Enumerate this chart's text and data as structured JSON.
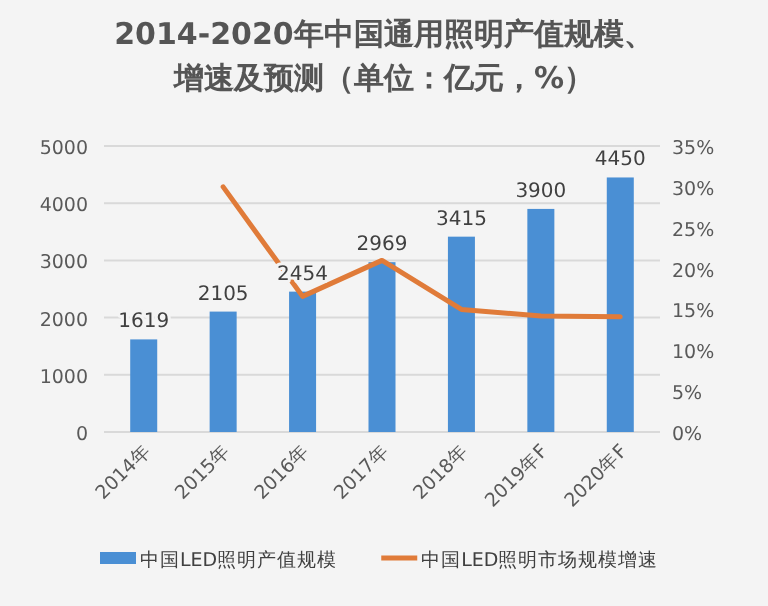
{
  "chart_data": {
    "type": "bar",
    "title": "2014-2020年中国通用照明产值规模、增速及预测（单位：亿元，%）",
    "categories": [
      "2014年",
      "2015年",
      "2016年",
      "2017年",
      "2018年",
      "2019年F",
      "2020年F"
    ],
    "series": [
      {
        "name": "中国LED照明产值规模",
        "color": "#4a8fd4",
        "values": [
          1619,
          2105,
          2454,
          2969,
          3415,
          3900,
          4450
        ],
        "value_labels": [
          "1619",
          "2105",
          "2454",
          "2969",
          "3415",
          "3900",
          "4450"
        ]
      },
      {
        "name": "中国LED照明市场规模增速",
        "type": "line",
        "axis": "y2",
        "color": "#e07b39",
        "values": [
          null,
          30,
          16.6,
          21,
          15,
          14.2,
          14.1
        ]
      }
    ],
    "ylim": [
      0,
      5000
    ],
    "yticks": [
      0,
      1000,
      2000,
      3000,
      4000,
      5000
    ],
    "y2lim": [
      0,
      35
    ],
    "y2ticks": [
      {
        "value": 0,
        "label": "0%"
      },
      {
        "value": 5,
        "label": "5%"
      },
      {
        "value": 10,
        "label": "10%"
      },
      {
        "value": 15,
        "label": "15%"
      },
      {
        "value": 20,
        "label": "20%"
      },
      {
        "value": 25,
        "label": "25%"
      },
      {
        "value": 30,
        "label": "30%"
      },
      {
        "value": 35,
        "label": "35%"
      }
    ],
    "grid": "y",
    "legend": "bottom",
    "marker": "none"
  }
}
